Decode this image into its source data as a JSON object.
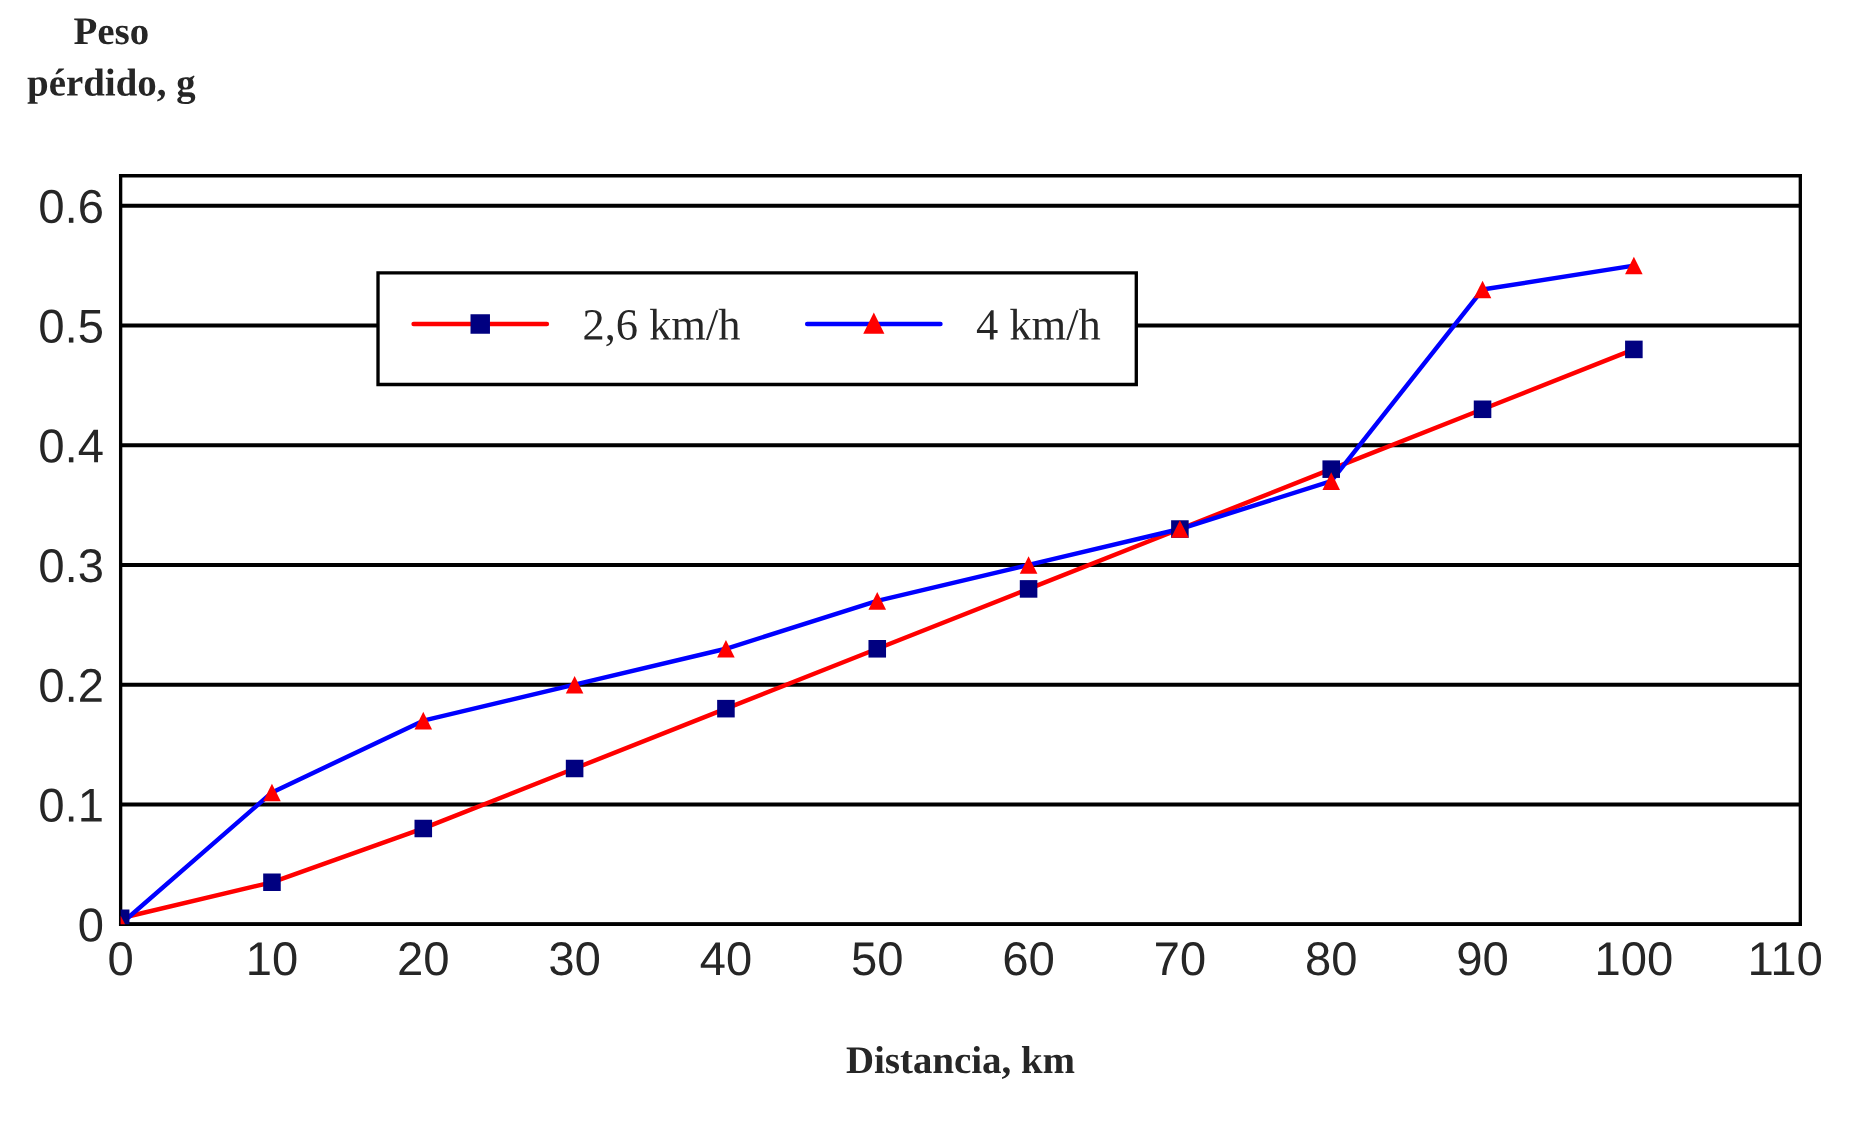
{
  "chart_data": {
    "type": "line",
    "xlabel": "Distancia, km",
    "ylabel": "Peso\npérdido, g",
    "x": [
      0,
      10,
      20,
      30,
      40,
      50,
      60,
      70,
      80,
      90,
      100
    ],
    "series": [
      {
        "name": "2,6 km/h",
        "color": "#ff0000",
        "colors": [
          "#000080",
          "#000080",
          "#000080",
          "#000080",
          "#000080",
          "#000080",
          "#000080",
          "#000080",
          "#000080",
          "#000080",
          "#000080"
        ],
        "marker": "square",
        "values": [
          0.005,
          0.035,
          0.08,
          0.13,
          0.18,
          0.23,
          0.28,
          0.33,
          0.38,
          0.43,
          0.48
        ]
      },
      {
        "name": "4 km/h",
        "color": "#0000ff",
        "colors": [
          "#ff0000",
          "#ff0000",
          "#ff0000",
          "#ff0000",
          "#ff0000",
          "#ff0000",
          "#ff0000",
          "#ff0000",
          "#ff0000",
          "#ff0000",
          "#ff0000"
        ],
        "marker": "triangle",
        "values": [
          0,
          0.11,
          0.17,
          0.2,
          0.23,
          0.27,
          0.3,
          0.33,
          0.37,
          0.53,
          0.55
        ]
      }
    ],
    "xlim": [
      0,
      111
    ],
    "xticks": [
      0,
      10,
      20,
      30,
      40,
      50,
      60,
      70,
      80,
      90,
      100,
      110
    ],
    "ylim": [
      0,
      0.625
    ],
    "yticks": [
      {
        "value": 0,
        "label": "0"
      },
      {
        "value": 0.1,
        "label": "0.1"
      },
      {
        "value": 0.2,
        "label": "0.2"
      },
      {
        "value": 0.3,
        "label": "0.3"
      },
      {
        "value": 0.4,
        "label": "0.4"
      },
      {
        "value": 0.5,
        "label": "0.5"
      },
      {
        "value": 0.6,
        "label": "0.6"
      }
    ],
    "grid": "y",
    "legend": "top left",
    "line_style": "solid"
  }
}
